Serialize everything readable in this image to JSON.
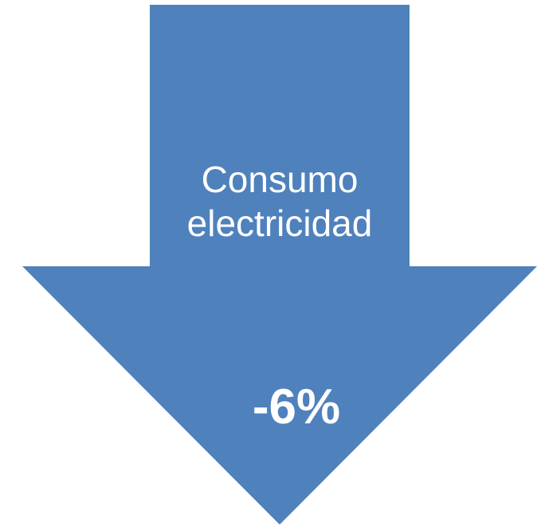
{
  "diagram": {
    "direction": "down",
    "fill_color": "#4F81BD",
    "text_color": "#FFFFFF",
    "label_lines": [
      "Consumo",
      "electricidad"
    ],
    "value": "-6%"
  }
}
